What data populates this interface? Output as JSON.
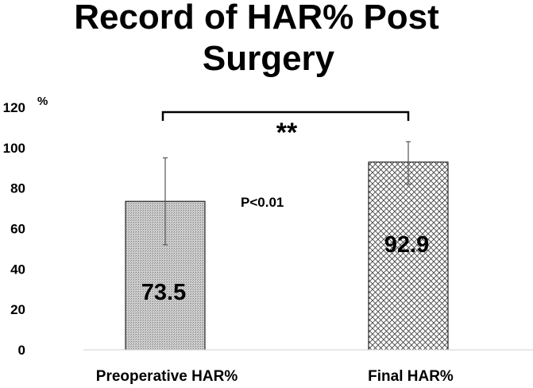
{
  "chart_data": {
    "type": "bar",
    "title_lines": [
      "Record of HAR% Post",
      "Surgery"
    ],
    "y_unit": "%",
    "ylim": [
      0,
      120
    ],
    "y_ticks": [
      "0",
      "20",
      "40",
      "60",
      "80",
      "100",
      "120"
    ],
    "categories": [
      "Preoperative HAR%",
      "Final HAR%"
    ],
    "values": [
      73.5,
      92.9
    ],
    "value_labels": [
      "73.5",
      "92.9"
    ],
    "error_bars": [
      {
        "low": 52,
        "high": 95
      },
      {
        "low": 82,
        "high": 103
      }
    ],
    "bar_patterns": [
      "fine-grey-dots",
      "crosshatch"
    ],
    "grid": false,
    "significance": {
      "stars": "**",
      "p_value": "P<0.01"
    }
  }
}
